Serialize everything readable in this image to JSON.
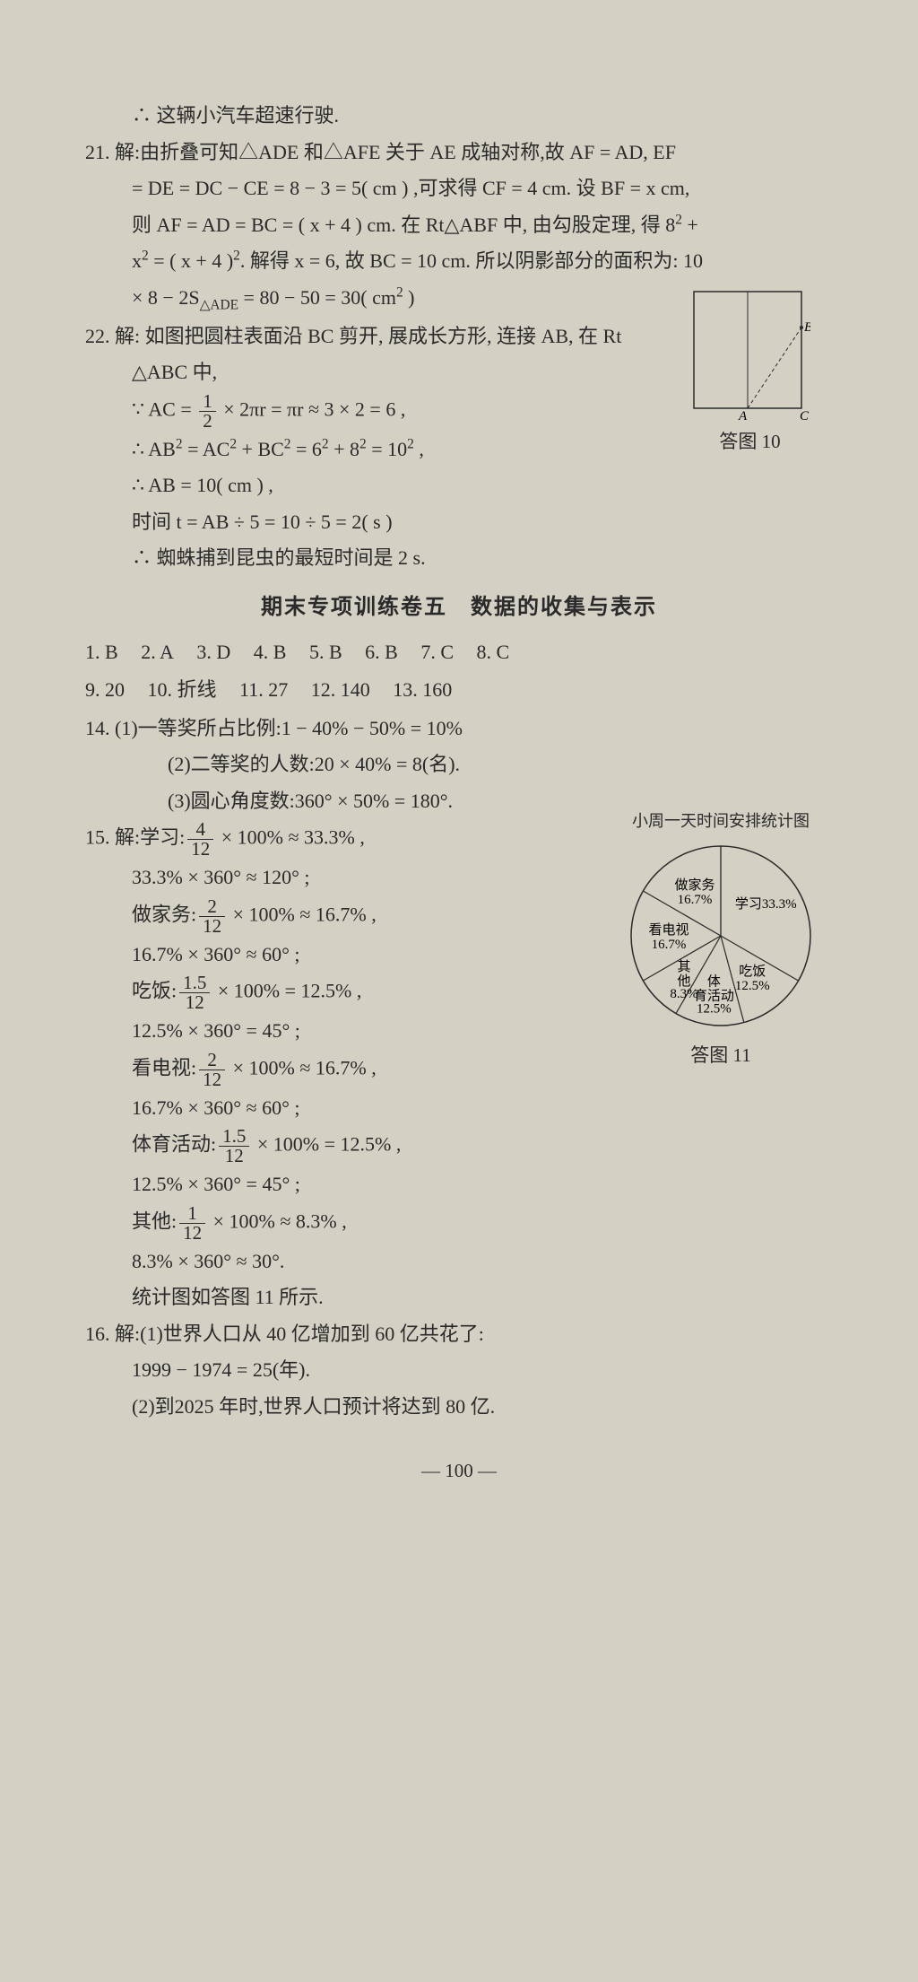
{
  "p20_1": "∴ 这辆小汽车超速行驶.",
  "p21_1": "21. 解:由折叠可知△ADE 和△AFE 关于 AE 成轴对称,故 AF = AD, EF",
  "p21_2": "= DE = DC − CE = 8 − 3 = 5( cm ) ,可求得 CF = 4 cm. 设 BF = x cm,",
  "p21_3a": "则 AF = AD = BC = ( x + 4 ) cm. 在 Rt△ABF 中, 由勾股定理, 得 8",
  "p21_3b": " +",
  "p21_4a": "x",
  "p21_4b": " = ( x + 4 )",
  "p21_4c": ". 解得 x = 6, 故 BC = 10 cm. 所以阴影部分的面积为: 10",
  "p21_5a": "× 8 − 2S",
  "p21_5b": " = 80 − 50 = 30( cm",
  "p21_5c": " )",
  "p22_1": "22. 解: 如图把圆柱表面沿 BC 剪开, 展成长方形, 连接 AB, 在 Rt",
  "p22_2": "△ABC 中,",
  "p22_3a": "∵ AC = ",
  "p22_3b": " × 2πr = πr ≈ 3 × 2 = 6 ,",
  "p22_4a": "∴ AB",
  "p22_4b": " = AC",
  "p22_4c": " + BC",
  "p22_4d": " = 6",
  "p22_4e": " + 8",
  "p22_4f": " = 10",
  "p22_4g": " ,",
  "p22_5": "∴ AB = 10( cm ) ,",
  "p22_6": "时间 t = AB ÷ 5 = 10 ÷ 5 = 2( s )",
  "p22_7": "∴ 蜘蛛捕到昆虫的最短时间是 2 s.",
  "section_title": "期末专项训练卷五　数据的收集与表示",
  "ans1": [
    {
      "n": "1.",
      "v": "B"
    },
    {
      "n": "2.",
      "v": "A"
    },
    {
      "n": "3.",
      "v": "D"
    },
    {
      "n": "4.",
      "v": "B"
    },
    {
      "n": "5.",
      "v": "B"
    },
    {
      "n": "6.",
      "v": "B"
    },
    {
      "n": "7.",
      "v": "C"
    },
    {
      "n": "8.",
      "v": "C"
    }
  ],
  "ans2": [
    {
      "n": "9.",
      "v": "20"
    },
    {
      "n": "10.",
      "v": "折线"
    },
    {
      "n": "11.",
      "v": "27"
    },
    {
      "n": "12.",
      "v": "140"
    },
    {
      "n": "13.",
      "v": "160"
    }
  ],
  "p14_1": "14. (1)一等奖所占比例:1 − 40% − 50% = 10%",
  "p14_2": "(2)二等奖的人数:20 × 40% = 8(名).",
  "p14_3": "(3)圆心角度数:360° × 50% = 180°.",
  "p15_1a": "15. 解:学习:",
  "p15_1b": " × 100% ≈ 33.3% ,",
  "p15_2": "33.3% × 360° ≈ 120° ;",
  "p15_3a": "做家务:",
  "p15_3b": " × 100% ≈ 16.7% ,",
  "p15_4": "16.7% × 360° ≈ 60° ;",
  "p15_5a": "吃饭:",
  "p15_5b": " × 100% = 12.5% ,",
  "p15_6": "12.5% × 360° = 45° ;",
  "p15_7a": "看电视:",
  "p15_7b": " × 100% ≈ 16.7% ,",
  "p15_8": "16.7% × 360° ≈ 60° ;",
  "p15_9a": "体育活动:",
  "p15_9b": " × 100% = 12.5% ,",
  "p15_10": "12.5% × 360° = 45° ;",
  "p15_11a": "其他:",
  "p15_11b": " × 100% ≈ 8.3% ,",
  "p15_12": "8.3% × 360° ≈ 30°.",
  "p15_13": "统计图如答图 11 所示.",
  "p16_1": "16. 解:(1)世界人口从 40 亿增加到 60 亿共花了:",
  "p16_2": "1999 − 1974 = 25(年).",
  "p16_3": "(2)到2025 年时,世界人口预计将达到 80 亿.",
  "page_number": "— 100 —",
  "frac": {
    "half": {
      "n": "1",
      "d": "2"
    },
    "f4_12": {
      "n": "4",
      "d": "12"
    },
    "f2_12": {
      "n": "2",
      "d": "12"
    },
    "f1p5_12": {
      "n": "1.5",
      "d": "12"
    },
    "f1_12": {
      "n": "1",
      "d": "12"
    }
  },
  "exp2": "2",
  "sub_ade": "△ADE",
  "fig10": {
    "caption": "答图 10",
    "labels": {
      "A": "A",
      "B": "B",
      "C": "C"
    },
    "stroke": "#2a2a2a",
    "bg": "#d4d0c4"
  },
  "fig11": {
    "title": "小周一天时间安排统计图",
    "caption": "答图 11",
    "stroke": "#2a2a2a",
    "radius": 100,
    "slices": [
      {
        "label": "学习33.3%",
        "angle": 120,
        "label2": ""
      },
      {
        "label": "吃饭",
        "angle": 45,
        "label2": "12.5%"
      },
      {
        "label": "体",
        "angle": 45,
        "label2": "育活动",
        "label3": "12.5%"
      },
      {
        "label": "其",
        "angle": 30,
        "label2": "他",
        "label3": "8.3%"
      },
      {
        "label": "看电视",
        "angle": 60,
        "label2": "16.7%"
      },
      {
        "label": "做家务",
        "angle": 60,
        "label2": "16.7%"
      }
    ]
  }
}
